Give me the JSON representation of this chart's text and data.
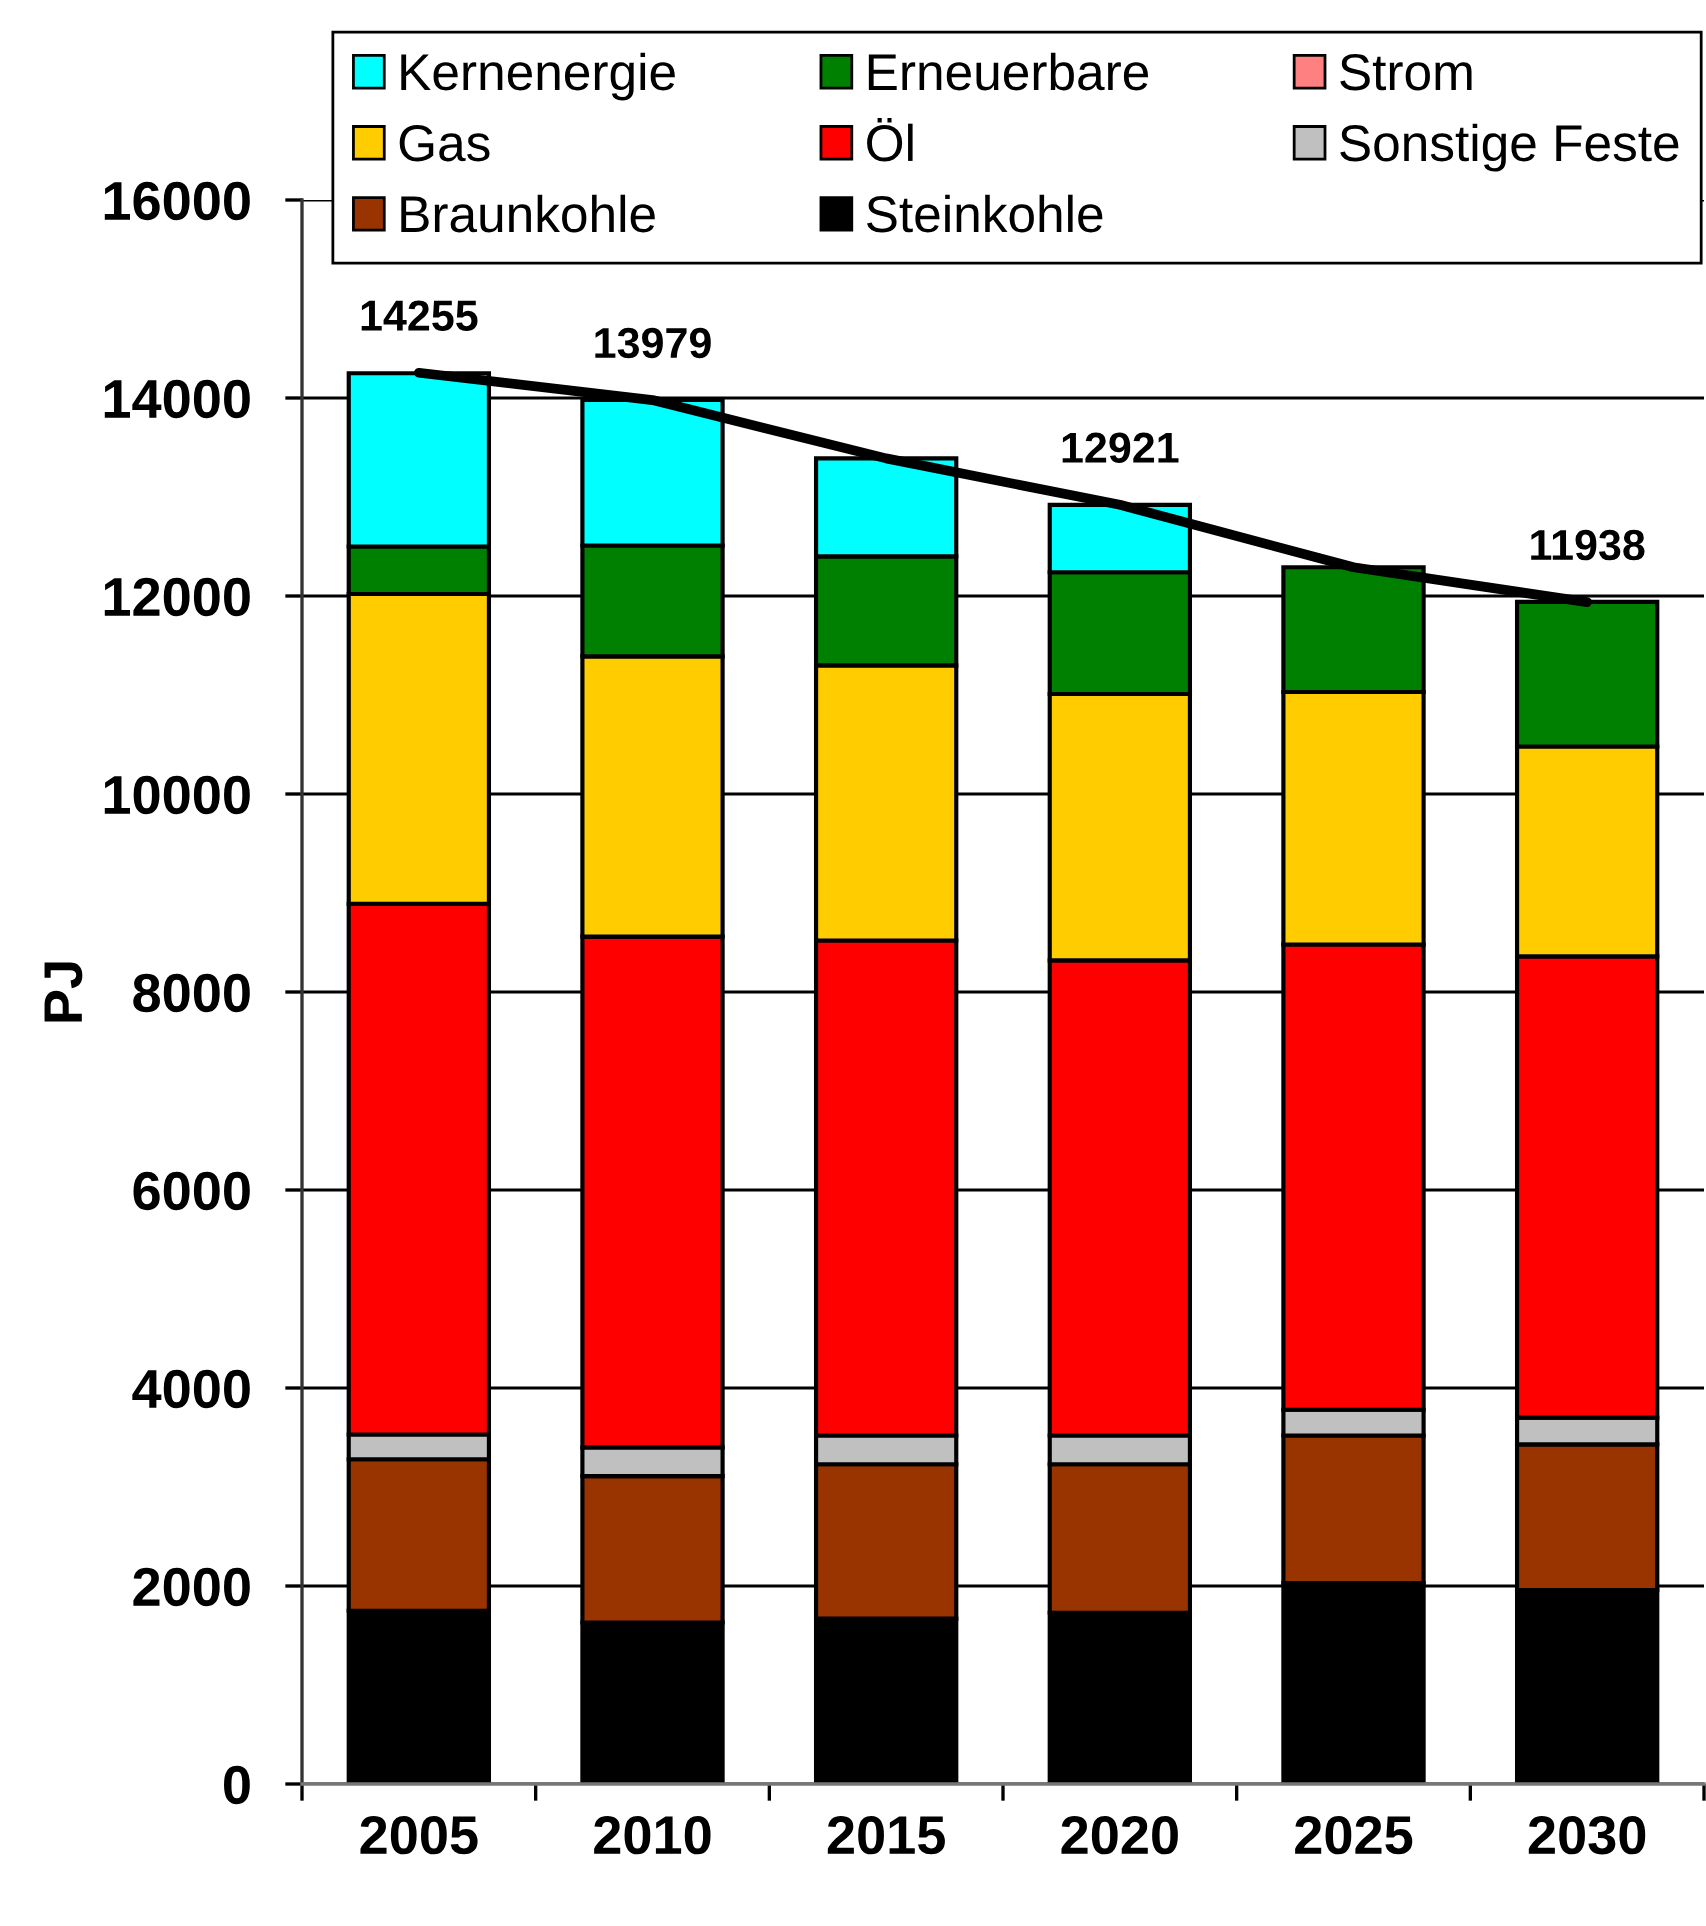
{
  "chart_data": {
    "type": "bar",
    "stacked": true,
    "categories": [
      "2005",
      "2010",
      "2015",
      "2020",
      "2025",
      "2030"
    ],
    "ylabel": "PJ",
    "ylim": [
      0,
      16000
    ],
    "yticks": [
      0,
      2000,
      4000,
      6000,
      8000,
      10000,
      12000,
      14000,
      16000
    ],
    "grid": "y",
    "legend": "top",
    "series": [
      {
        "name": "Steinkohle",
        "color": "#000000",
        "values": [
          1750,
          1630,
          1670,
          1730,
          2030,
          1960
        ]
      },
      {
        "name": "Braunkohle",
        "color": "#993300",
        "values": [
          1530,
          1480,
          1560,
          1500,
          1490,
          1470
        ]
      },
      {
        "name": "Sonstige Feste",
        "color": "#c0c0c0",
        "values": [
          250,
          290,
          290,
          290,
          260,
          270
        ]
      },
      {
        "name": "Öl",
        "color": "#ff0000",
        "values": [
          5360,
          5160,
          5000,
          4800,
          4700,
          4660
        ]
      },
      {
        "name": "Gas",
        "color": "#ffcc00",
        "values": [
          3130,
          2830,
          2780,
          2690,
          2550,
          2120
        ]
      },
      {
        "name": "Strom",
        "color": "#ff8080",
        "values": [
          null,
          null,
          null,
          null,
          null,
          null
        ]
      },
      {
        "name": "Erneuerbare",
        "color": "#008000",
        "values": [
          480,
          1120,
          1100,
          1230,
          1260,
          1460
        ]
      },
      {
        "name": "Kernenergie",
        "color": "#00ffff",
        "values": [
          1750,
          1470,
          990,
          680,
          null,
          null
        ]
      },
      {
        "type": "line",
        "color": "#000000",
        "values": [
          14255,
          13979,
          13390,
          12921,
          12290,
          11938
        ],
        "value_labels": [
          "14255",
          "13979",
          null,
          "12921",
          null,
          "11938"
        ]
      }
    ]
  }
}
